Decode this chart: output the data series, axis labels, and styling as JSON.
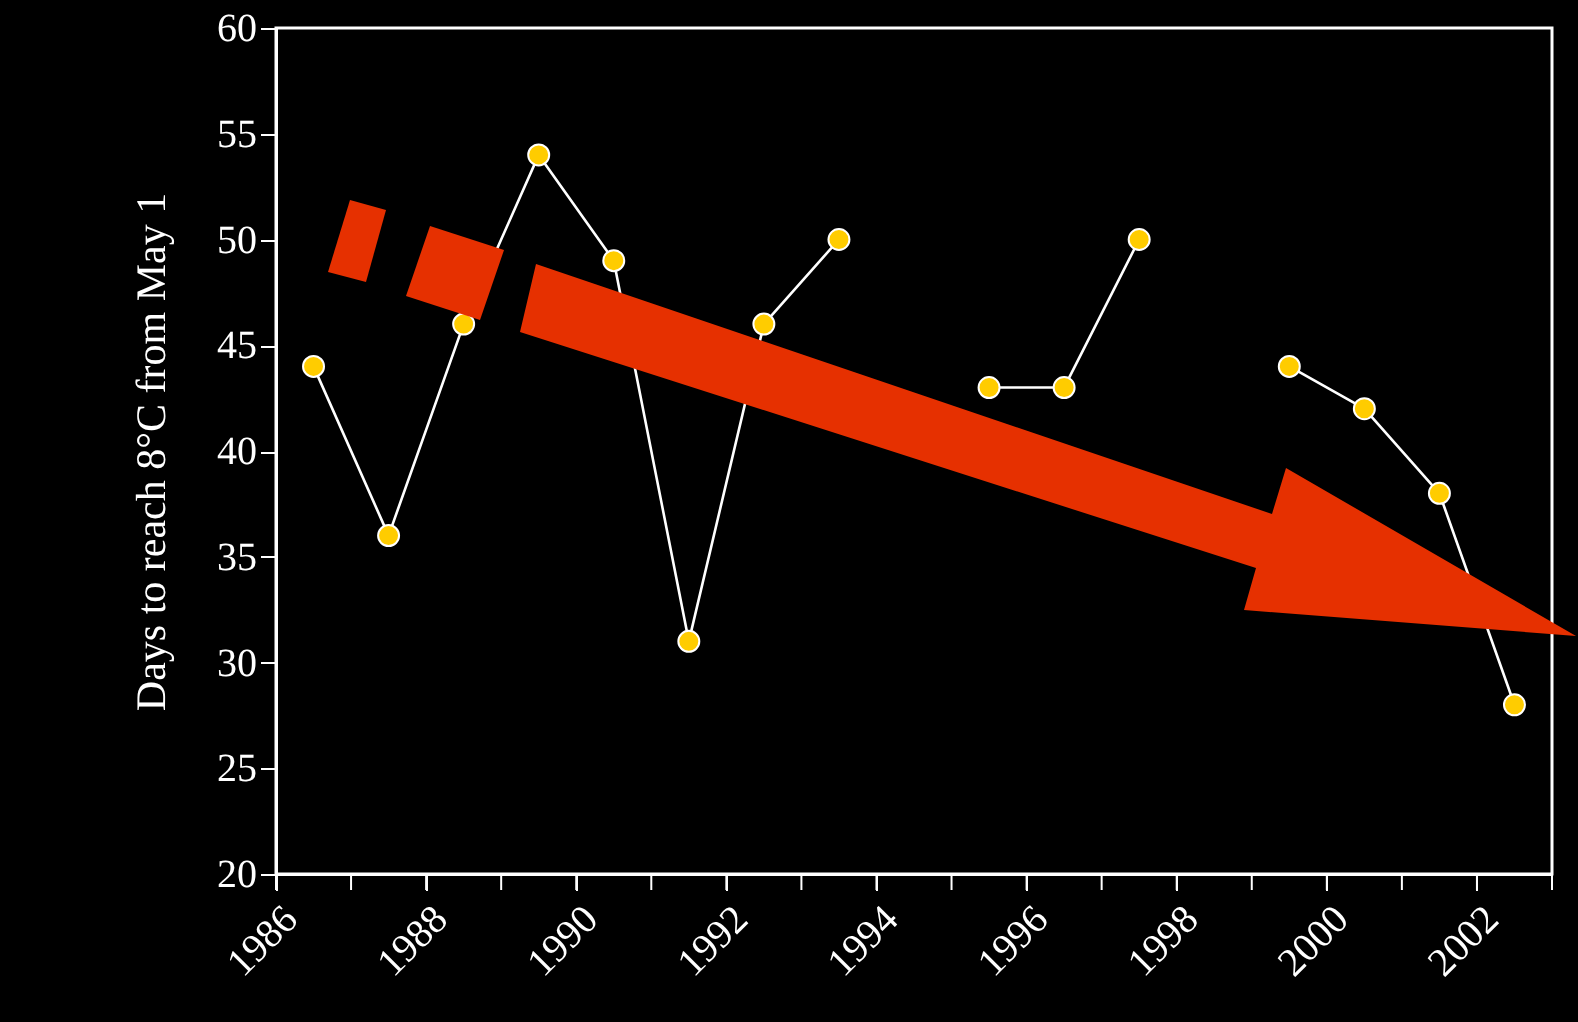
{
  "chart_data": {
    "type": "line",
    "ylabel": "Days to reach 8°C from May 1",
    "x": [
      1986.5,
      1987.5,
      1988.5,
      1989.5,
      1990.5,
      1991.5,
      1992.5,
      1993.5,
      1994.5,
      1995.5,
      1996.5,
      1997.5,
      1998.5,
      1999.5,
      2000.5,
      2001.5,
      2002.5
    ],
    "series": [
      {
        "color": "#ffcc00",
        "values": [
          44,
          36,
          46,
          54,
          49,
          31,
          46,
          50,
          null,
          43,
          43,
          50,
          null,
          44,
          42,
          38,
          28
        ]
      }
    ],
    "xlim": [
      1986,
      2003
    ],
    "xticks": [
      1986,
      {
        "value": 1987,
        "label": null
      },
      1988,
      {
        "value": 1989,
        "label": null
      },
      1990,
      {
        "value": 1991,
        "label": null
      },
      1992,
      {
        "value": 1993,
        "label": null
      },
      1994,
      {
        "value": 1995,
        "label": null
      },
      1996,
      {
        "value": 1997,
        "label": null
      },
      1998,
      {
        "value": 1999,
        "label": null
      },
      2000,
      {
        "value": 2001,
        "label": null
      },
      2002,
      {
        "value": 2003,
        "label": null
      }
    ],
    "ylim": [
      20,
      60
    ],
    "yticks": [
      20,
      25,
      30,
      35,
      40,
      45,
      50,
      55,
      60
    ],
    "grid": false,
    "marker": "circle",
    "line_style": "solid"
  }
}
